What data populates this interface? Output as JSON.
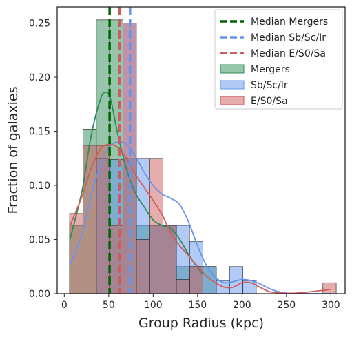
{
  "chart_data": {
    "type": "histogram",
    "xlabel": "Group Radius (kpc)",
    "ylabel": "Fraction of galaxies",
    "xlim": [
      -8,
      316
    ],
    "ylim": [
      0,
      0.265
    ],
    "x_ticks": [
      0,
      50,
      100,
      150,
      200,
      250,
      300
    ],
    "y_ticks": [
      0.0,
      0.05,
      0.1,
      0.15,
      0.2,
      0.25
    ],
    "x_tick_labels": [
      "0",
      "50",
      "100",
      "150",
      "200",
      "250",
      "300"
    ],
    "y_tick_labels": [
      "0.00",
      "0.05",
      "0.10",
      "0.15",
      "0.20",
      "0.25"
    ],
    "grid": false,
    "legend_position": "top-right",
    "legend": [
      {
        "label": "Median Mergers",
        "kind": "dashed-line",
        "color": "#006400"
      },
      {
        "label": "Median Sb/Sc/Ir",
        "kind": "dashed-line",
        "color": "#6495ED"
      },
      {
        "label": "Median E/S0/Sa",
        "kind": "dashed-line",
        "color": "#CD5C5C"
      },
      {
        "label": "Mergers",
        "kind": "patch",
        "color": "#2E8B57"
      },
      {
        "label": "Sb/Sc/Ir",
        "kind": "patch",
        "color": "#6495ED"
      },
      {
        "label": "E/S0/Sa",
        "kind": "patch",
        "color": "#CD5C5C"
      }
    ],
    "series": [
      {
        "name": "Mergers",
        "color": "#2E8B57",
        "bins": [
          [
            6,
            21
          ],
          [
            21,
            36
          ],
          [
            36,
            51
          ],
          [
            51,
            66
          ],
          [
            66,
            81
          ],
          [
            81,
            96
          ],
          [
            96,
            111
          ],
          [
            111,
            126
          ],
          [
            126,
            141
          ],
          [
            141,
            156
          ],
          [
            156,
            171
          ]
        ],
        "values": [
          0.063,
          0.152,
          0.253,
          0.253,
          0.125,
          0.063,
          0.063,
          0.063,
          0.025,
          0.025,
          0.025
        ],
        "kde": [
          [
            6,
            0.049
          ],
          [
            20,
            0.095
          ],
          [
            30,
            0.145
          ],
          [
            40,
            0.178
          ],
          [
            46,
            0.186
          ],
          [
            52,
            0.18
          ],
          [
            60,
            0.148
          ],
          [
            70,
            0.115
          ],
          [
            80,
            0.093
          ],
          [
            90,
            0.08
          ],
          [
            100,
            0.068
          ],
          [
            110,
            0.063
          ],
          [
            120,
            0.06
          ],
          [
            130,
            0.05
          ],
          [
            140,
            0.036
          ],
          [
            150,
            0.024
          ],
          [
            156,
            0.018
          ]
        ]
      },
      {
        "name": "Sb/Sc/Ir",
        "color": "#6495ED",
        "bins": [
          [
            6,
            21
          ],
          [
            21,
            36
          ],
          [
            36,
            51
          ],
          [
            51,
            66
          ],
          [
            66,
            81
          ],
          [
            81,
            96
          ],
          [
            96,
            111
          ],
          [
            111,
            126
          ],
          [
            126,
            141
          ],
          [
            141,
            156
          ],
          [
            156,
            171
          ],
          [
            171,
            186
          ],
          [
            186,
            201
          ],
          [
            201,
            216
          ],
          [
            216,
            231
          ],
          [
            231,
            246
          ],
          [
            246,
            261
          ],
          [
            261,
            276
          ],
          [
            276,
            291
          ],
          [
            291,
            306
          ]
        ],
        "values": [
          0.0,
          0.0,
          0.125,
          0.124,
          0.25,
          0.125,
          0.063,
          0.063,
          0.063,
          0.048,
          0.025,
          0.012,
          0.025,
          0.012,
          0.0,
          0.0,
          0.0,
          0.0,
          0.0,
          0.0
        ],
        "kde": [
          [
            6,
            0.026
          ],
          [
            20,
            0.055
          ],
          [
            30,
            0.09
          ],
          [
            40,
            0.118
          ],
          [
            50,
            0.135
          ],
          [
            60,
            0.14
          ],
          [
            70,
            0.138
          ],
          [
            80,
            0.127
          ],
          [
            90,
            0.112
          ],
          [
            100,
            0.1
          ],
          [
            110,
            0.092
          ],
          [
            120,
            0.088
          ],
          [
            130,
            0.082
          ],
          [
            140,
            0.066
          ],
          [
            150,
            0.044
          ],
          [
            160,
            0.026
          ],
          [
            170,
            0.015
          ],
          [
            180,
            0.01
          ],
          [
            190,
            0.011
          ],
          [
            200,
            0.013
          ],
          [
            210,
            0.012
          ],
          [
            220,
            0.009
          ],
          [
            230,
            0.005
          ],
          [
            240,
            0.002
          ],
          [
            250,
            0.0005
          ],
          [
            270,
            0.0
          ],
          [
            290,
            0.0
          ],
          [
            300,
            0.0
          ]
        ]
      },
      {
        "name": "E/S0/Sa",
        "color": "#CD5C5C",
        "bins": [
          [
            6,
            21
          ],
          [
            21,
            36
          ],
          [
            36,
            51
          ],
          [
            51,
            66
          ],
          [
            66,
            81
          ],
          [
            81,
            96
          ],
          [
            96,
            111
          ],
          [
            111,
            126
          ],
          [
            126,
            141
          ],
          [
            141,
            156
          ],
          [
            156,
            171
          ],
          [
            171,
            186
          ],
          [
            186,
            201
          ],
          [
            201,
            216
          ],
          [
            216,
            231
          ],
          [
            231,
            246
          ],
          [
            246,
            261
          ],
          [
            261,
            276
          ],
          [
            276,
            291
          ],
          [
            291,
            306
          ]
        ],
        "values": [
          0.074,
          0.137,
          0.137,
          0.063,
          0.25,
          0.05,
          0.125,
          0.063,
          0.013,
          0.025,
          0.0,
          0.0,
          0.0,
          0.0,
          0.0,
          0.0,
          0.0,
          0.0,
          0.0,
          0.01
        ],
        "kde": [
          [
            6,
            0.062
          ],
          [
            20,
            0.09
          ],
          [
            30,
            0.115
          ],
          [
            40,
            0.133
          ],
          [
            50,
            0.138
          ],
          [
            60,
            0.135
          ],
          [
            70,
            0.125
          ],
          [
            80,
            0.11
          ],
          [
            90,
            0.098
          ],
          [
            100,
            0.086
          ],
          [
            110,
            0.073
          ],
          [
            120,
            0.056
          ],
          [
            130,
            0.044
          ],
          [
            140,
            0.035
          ],
          [
            150,
            0.025
          ],
          [
            160,
            0.016
          ],
          [
            170,
            0.01
          ],
          [
            180,
            0.006
          ],
          [
            190,
            0.006
          ],
          [
            200,
            0.01
          ],
          [
            210,
            0.01
          ],
          [
            220,
            0.006
          ],
          [
            230,
            0.002
          ],
          [
            245,
            0.0005
          ],
          [
            260,
            0.0005
          ],
          [
            280,
            0.002
          ],
          [
            300,
            0.004
          ]
        ]
      }
    ],
    "medians": [
      {
        "name": "Median Mergers",
        "x": 51,
        "color": "#006400"
      },
      {
        "name": "Median Sb/Sc/Ir",
        "x": 74,
        "color": "#6495ED"
      },
      {
        "name": "Median E/S0/Sa",
        "x": 62,
        "color": "#CD5C5C"
      }
    ]
  }
}
